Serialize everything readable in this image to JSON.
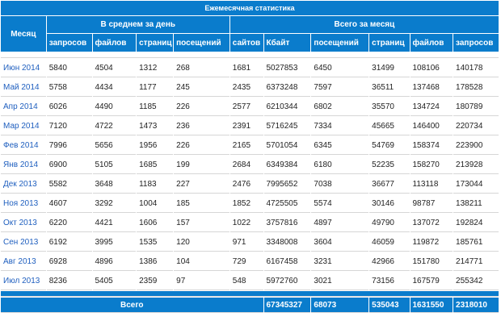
{
  "title": "Ежемесячная статистика",
  "header": {
    "month": "Месяц",
    "daily_group": "В среднем за день",
    "monthly_group": "Всего за месяц",
    "daily_columns": [
      "запросов",
      "файлов",
      "страниц",
      "посещений"
    ],
    "monthly_columns": [
      "сайтов",
      "Кбайт",
      "посещений",
      "страниц",
      "файлов",
      "запросов"
    ]
  },
  "rows": [
    {
      "month": "Июн 2014",
      "daily": [
        5840,
        4504,
        1312,
        268
      ],
      "monthly": [
        1681,
        5027853,
        6450,
        31499,
        108106,
        140178
      ]
    },
    {
      "month": "Май 2014",
      "daily": [
        5758,
        4434,
        1177,
        245
      ],
      "monthly": [
        2435,
        6373248,
        7597,
        36511,
        137468,
        178528
      ]
    },
    {
      "month": "Апр 2014",
      "daily": [
        6026,
        4490,
        1185,
        226
      ],
      "monthly": [
        2577,
        6210344,
        6802,
        35570,
        134724,
        180789
      ]
    },
    {
      "month": "Мар 2014",
      "daily": [
        7120,
        4722,
        1473,
        236
      ],
      "monthly": [
        2391,
        5716245,
        7334,
        45665,
        146400,
        220734
      ]
    },
    {
      "month": "Фев 2014",
      "daily": [
        7996,
        5656,
        1956,
        226
      ],
      "monthly": [
        2165,
        5701054,
        6345,
        54769,
        158374,
        223900
      ]
    },
    {
      "month": "Янв 2014",
      "daily": [
        6900,
        5105,
        1685,
        199
      ],
      "monthly": [
        2684,
        6349384,
        6180,
        52235,
        158270,
        213928
      ]
    },
    {
      "month": "Дек 2013",
      "daily": [
        5582,
        3648,
        1183,
        227
      ],
      "monthly": [
        2476,
        7995652,
        7038,
        36677,
        113118,
        173044
      ]
    },
    {
      "month": "Ноя 2013",
      "daily": [
        4607,
        3292,
        1004,
        185
      ],
      "monthly": [
        1852,
        4725505,
        5574,
        30146,
        98787,
        138211
      ]
    },
    {
      "month": "Окт 2013",
      "daily": [
        6220,
        4421,
        1606,
        157
      ],
      "monthly": [
        1022,
        3757816,
        4897,
        49790,
        137072,
        192824
      ]
    },
    {
      "month": "Сен 2013",
      "daily": [
        6192,
        3995,
        1535,
        120
      ],
      "monthly": [
        971,
        3348008,
        3604,
        46059,
        119872,
        185761
      ]
    },
    {
      "month": "Авг 2013",
      "daily": [
        6928,
        4896,
        1386,
        104
      ],
      "monthly": [
        729,
        6167458,
        3231,
        42966,
        151780,
        214771
      ]
    },
    {
      "month": "Июл 2013",
      "daily": [
        8236,
        5405,
        2359,
        97
      ],
      "monthly": [
        548,
        5972760,
        3021,
        73156,
        167579,
        255342
      ]
    }
  ],
  "total": {
    "label": "Всего",
    "values": [
      67345327,
      68073,
      535043,
      1631550,
      2318010
    ]
  }
}
